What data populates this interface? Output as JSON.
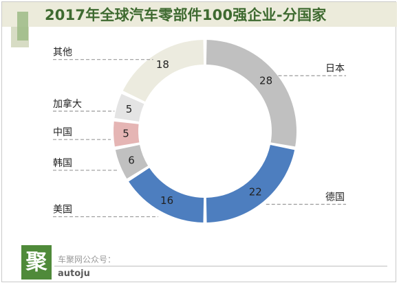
{
  "title": "2017年全球汽车零部件100强企业-分国家",
  "footer": {
    "logo_char": "聚",
    "label": "车聚网公众号：",
    "handle": "autoju"
  },
  "chart_data": {
    "type": "pie",
    "donut": true,
    "title": "2017年全球汽车零部件100强企业-分国家",
    "legend": "none",
    "slices": [
      {
        "label": "日本",
        "value": 28,
        "color": "#c0c0c0"
      },
      {
        "label": "德国",
        "value": 22,
        "color": "#4d7ebf"
      },
      {
        "label": "美国",
        "value": 16,
        "color": "#4d7ebf"
      },
      {
        "label": "韩国",
        "value": 6,
        "color": "#c0c0c0"
      },
      {
        "label": "中国",
        "value": 5,
        "color": "#e5b5b4"
      },
      {
        "label": "加拿大",
        "value": 5,
        "color": "#e4e4e4"
      },
      {
        "label": "其他",
        "value": 18,
        "color": "#ecebdf"
      }
    ]
  }
}
